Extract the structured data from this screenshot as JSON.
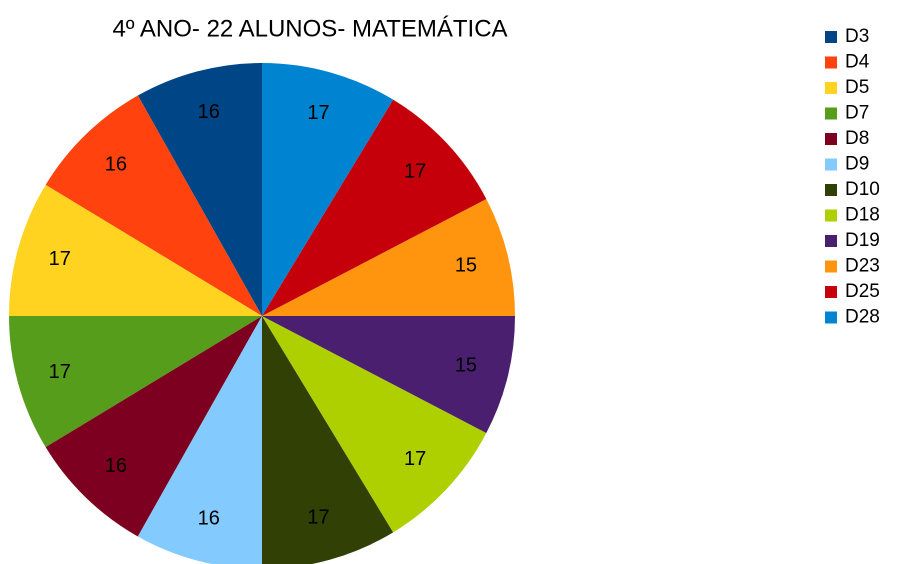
{
  "chart_data": {
    "type": "pie",
    "title": "4º ANO- 22 ALUNOS- MATEMÁTICA",
    "categories": [
      "D3",
      "D4",
      "D5",
      "D7",
      "D8",
      "D9",
      "D10",
      "D18",
      "D19",
      "D23",
      "D25",
      "D28"
    ],
    "values": [
      16,
      16,
      17,
      17,
      16,
      16,
      17,
      17,
      15,
      15,
      17,
      17
    ],
    "colors": [
      "#004586",
      "#ff420e",
      "#ffd320",
      "#579d1c",
      "#7e0021",
      "#83caff",
      "#314004",
      "#aecf00",
      "#4b1f6f",
      "#ff950e",
      "#c5000b",
      "#0084d1"
    ],
    "legend": "right"
  }
}
